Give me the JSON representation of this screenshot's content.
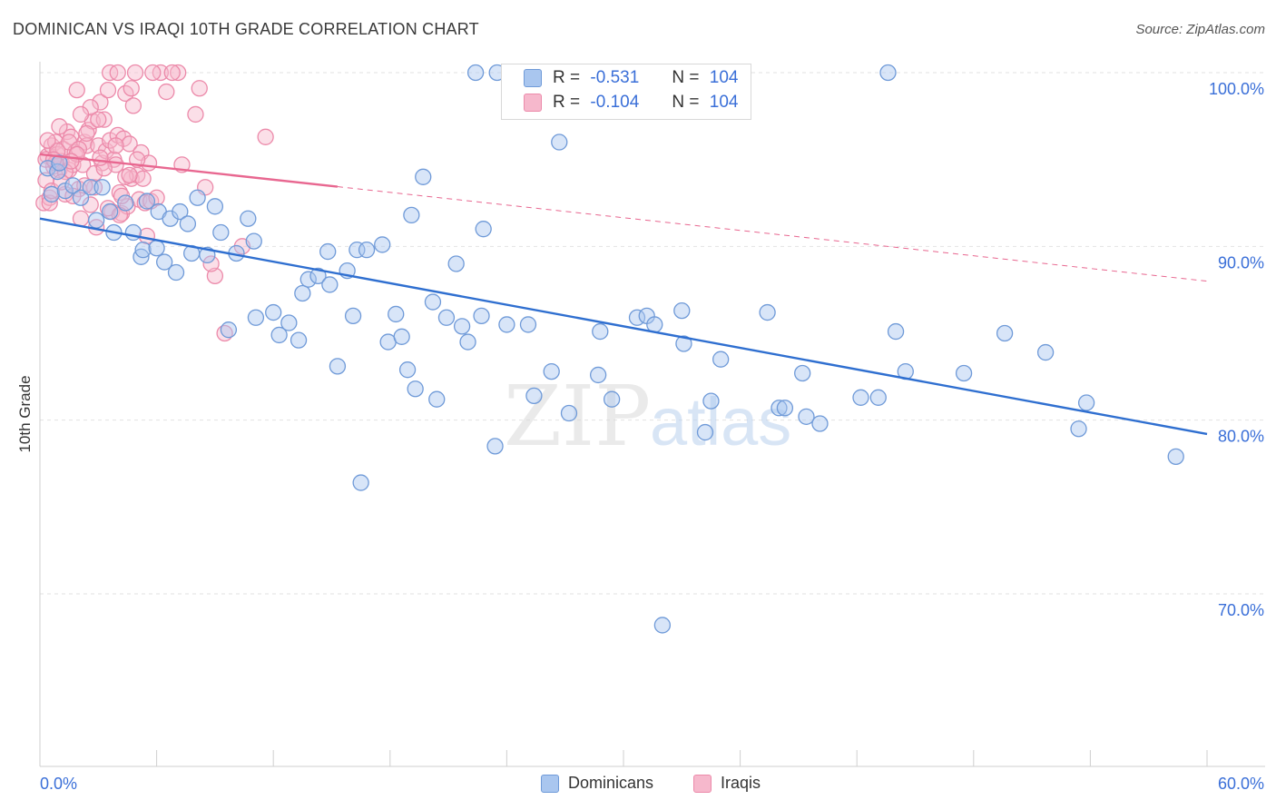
{
  "title": "DOMINICAN VS IRAQI 10TH GRADE CORRELATION CHART",
  "source": "Source: ZipAtlas.com",
  "watermark": {
    "zip": "ZIP",
    "atlas": "atlas"
  },
  "legend": {
    "rows": [
      {
        "r_label": "R =",
        "r_value": "-0.531",
        "n_label": "N =",
        "n_value": "104"
      },
      {
        "r_label": "R =",
        "r_value": "-0.104",
        "n_label": "N =",
        "n_value": "104"
      }
    ]
  },
  "bottom_legend": [
    "Dominicans",
    "Iraqis"
  ],
  "colors": {
    "dominicans_fill": "#a9c6ef",
    "dominicans_stroke": "#6f9ad8",
    "dominicans_line": "#2f6fd0",
    "iraqis_fill": "#f6b8cc",
    "iraqis_stroke": "#ec8aaa",
    "iraqis_line": "#e86790",
    "tick_label": "#3a6fd8",
    "grid": "#e2e2e2"
  },
  "chart_data": {
    "type": "scatter",
    "title": "DOMINICAN VS IRAQI 10TH GRADE CORRELATION CHART",
    "xlabel": "",
    "ylabel": "10th Grade",
    "xlim": [
      0,
      60
    ],
    "ylim": [
      60,
      103
    ],
    "x_ticks": [
      0,
      6,
      12,
      18,
      24,
      30,
      36,
      42,
      48,
      54,
      60
    ],
    "x_tick_labels": [
      {
        "value": 0,
        "label": "0.0%"
      },
      {
        "value": 60,
        "label": "60.0%"
      }
    ],
    "y_ticks": [
      {
        "value": 70,
        "label": "70.0%"
      },
      {
        "value": 80,
        "label": "80.0%"
      },
      {
        "value": 90,
        "label": "90.0%"
      },
      {
        "value": 100,
        "label": "100.0%"
      }
    ],
    "grid": "horizontal dashed",
    "legend_placement": "bottom-center",
    "series": [
      {
        "name": "Dominicans",
        "r": -0.531,
        "n": 104,
        "trend": {
          "x": [
            0,
            60
          ],
          "y": [
            91.6,
            79.2
          ],
          "dashed_from": null
        },
        "points": [
          [
            0.4,
            94.5
          ],
          [
            0.6,
            93.0
          ],
          [
            0.9,
            94.3
          ],
          [
            1.3,
            93.2
          ],
          [
            1.7,
            93.5
          ],
          [
            2.1,
            92.8
          ],
          [
            2.6,
            93.4
          ],
          [
            3.2,
            93.4
          ],
          [
            2.9,
            91.5
          ],
          [
            3.6,
            92.0
          ],
          [
            3.8,
            90.8
          ],
          [
            4.4,
            92.5
          ],
          [
            4.8,
            90.8
          ],
          [
            5.2,
            89.4
          ],
          [
            5.3,
            89.8
          ],
          [
            6.0,
            89.9
          ],
          [
            6.1,
            92.0
          ],
          [
            6.4,
            89.1
          ],
          [
            6.7,
            91.6
          ],
          [
            7.0,
            88.5
          ],
          [
            7.2,
            92.0
          ],
          [
            7.6,
            91.3
          ],
          [
            7.8,
            89.6
          ],
          [
            8.1,
            92.8
          ],
          [
            8.6,
            89.5
          ],
          [
            9.0,
            92.3
          ],
          [
            9.3,
            90.8
          ],
          [
            10.1,
            89.6
          ],
          [
            10.7,
            91.6
          ],
          [
            11.0,
            90.3
          ],
          [
            9.7,
            85.2
          ],
          [
            11.1,
            85.9
          ],
          [
            12.0,
            86.2
          ],
          [
            12.3,
            84.9
          ],
          [
            12.8,
            85.6
          ],
          [
            13.3,
            84.6
          ],
          [
            13.5,
            87.3
          ],
          [
            13.8,
            88.1
          ],
          [
            14.3,
            88.3
          ],
          [
            14.8,
            89.7
          ],
          [
            14.9,
            87.8
          ],
          [
            15.3,
            83.1
          ],
          [
            15.8,
            88.6
          ],
          [
            16.1,
            86.0
          ],
          [
            16.3,
            89.8
          ],
          [
            16.8,
            89.8
          ],
          [
            17.6,
            90.1
          ],
          [
            17.9,
            84.5
          ],
          [
            18.3,
            86.1
          ],
          [
            18.6,
            84.8
          ],
          [
            18.9,
            82.9
          ],
          [
            19.1,
            91.8
          ],
          [
            19.3,
            81.8
          ],
          [
            19.7,
            94.0
          ],
          [
            20.2,
            86.8
          ],
          [
            20.4,
            81.2
          ],
          [
            20.9,
            85.9
          ],
          [
            21.4,
            89.0
          ],
          [
            21.7,
            85.4
          ],
          [
            22.0,
            84.5
          ],
          [
            22.4,
            100.0
          ],
          [
            22.7,
            86.0
          ],
          [
            22.8,
            91.0
          ],
          [
            23.5,
            100.0
          ],
          [
            23.4,
            78.5
          ],
          [
            24.0,
            85.5
          ],
          [
            25.1,
            85.5
          ],
          [
            25.4,
            81.4
          ],
          [
            26.3,
            82.8
          ],
          [
            26.7,
            96.0
          ],
          [
            27.2,
            80.4
          ],
          [
            28.7,
            82.6
          ],
          [
            28.8,
            85.1
          ],
          [
            29.4,
            81.2
          ],
          [
            30.7,
            85.9
          ],
          [
            31.2,
            86.0
          ],
          [
            31.6,
            85.5
          ],
          [
            32.0,
            68.2
          ],
          [
            32.3,
            100.0
          ],
          [
            33.0,
            86.3
          ],
          [
            33.1,
            84.4
          ],
          [
            34.2,
            79.3
          ],
          [
            34.5,
            81.1
          ],
          [
            35.0,
            83.5
          ],
          [
            37.4,
            86.2
          ],
          [
            38.0,
            80.7
          ],
          [
            38.3,
            80.7
          ],
          [
            39.2,
            82.7
          ],
          [
            39.4,
            80.2
          ],
          [
            40.1,
            79.8
          ],
          [
            42.2,
            81.3
          ],
          [
            43.1,
            81.3
          ],
          [
            43.6,
            100.0
          ],
          [
            44.0,
            85.1
          ],
          [
            44.5,
            82.8
          ],
          [
            47.5,
            82.7
          ],
          [
            49.6,
            85.0
          ],
          [
            51.7,
            83.9
          ],
          [
            53.4,
            79.5
          ],
          [
            53.8,
            81.0
          ],
          [
            58.4,
            77.9
          ],
          [
            16.5,
            76.4
          ],
          [
            5.5,
            92.6
          ],
          [
            1.0,
            94.8
          ]
        ]
      },
      {
        "name": "Iraqis",
        "r": -0.104,
        "n": 104,
        "trend": {
          "x": [
            0,
            60
          ],
          "y": [
            95.3,
            88.0
          ],
          "solid_until": 15.3
        },
        "points": [
          [
            0.2,
            92.5
          ],
          [
            0.3,
            93.8
          ],
          [
            0.4,
            95.2
          ],
          [
            0.5,
            92.8
          ],
          [
            0.6,
            95.8
          ],
          [
            0.7,
            94.6
          ],
          [
            0.8,
            96.0
          ],
          [
            0.9,
            95.3
          ],
          [
            1.0,
            94.4
          ],
          [
            1.1,
            94.9
          ],
          [
            1.2,
            95.6
          ],
          [
            1.3,
            93.0
          ],
          [
            1.4,
            96.6
          ],
          [
            1.5,
            94.4
          ],
          [
            1.6,
            96.3
          ],
          [
            1.7,
            94.7
          ],
          [
            1.8,
            95.4
          ],
          [
            1.9,
            99.0
          ],
          [
            2.0,
            93.3
          ],
          [
            2.1,
            91.6
          ],
          [
            2.2,
            94.7
          ],
          [
            2.3,
            96.0
          ],
          [
            2.4,
            95.8
          ],
          [
            2.5,
            96.7
          ],
          [
            2.6,
            92.4
          ],
          [
            2.7,
            97.2
          ],
          [
            2.8,
            93.4
          ],
          [
            2.9,
            91.1
          ],
          [
            3.0,
            95.8
          ],
          [
            3.1,
            98.3
          ],
          [
            3.2,
            94.8
          ],
          [
            3.3,
            97.3
          ],
          [
            3.4,
            95.5
          ],
          [
            3.5,
            99.0
          ],
          [
            3.6,
            96.1
          ],
          [
            3.7,
            92.0
          ],
          [
            3.8,
            95.0
          ],
          [
            3.9,
            94.7
          ],
          [
            4.0,
            96.4
          ],
          [
            4.1,
            93.1
          ],
          [
            4.2,
            91.9
          ],
          [
            4.3,
            96.2
          ],
          [
            4.4,
            98.8
          ],
          [
            4.5,
            92.3
          ],
          [
            4.6,
            95.9
          ],
          [
            4.7,
            93.9
          ],
          [
            4.8,
            98.1
          ],
          [
            4.9,
            100.0
          ],
          [
            5.0,
            94.1
          ],
          [
            5.1,
            92.7
          ],
          [
            5.2,
            95.4
          ],
          [
            5.3,
            93.9
          ],
          [
            5.4,
            92.5
          ],
          [
            5.5,
            90.6
          ],
          [
            5.6,
            94.8
          ],
          [
            5.7,
            92.6
          ],
          [
            6.0,
            92.8
          ],
          [
            6.2,
            100.0
          ],
          [
            6.5,
            98.9
          ],
          [
            7.1,
            100.0
          ],
          [
            7.3,
            94.7
          ],
          [
            8.0,
            97.6
          ],
          [
            8.2,
            99.1
          ],
          [
            8.5,
            93.4
          ],
          [
            9.0,
            88.3
          ],
          [
            8.8,
            89.0
          ],
          [
            9.5,
            85.0
          ],
          [
            10.4,
            90.0
          ],
          [
            11.6,
            96.3
          ],
          [
            5.8,
            100.0
          ],
          [
            6.8,
            100.0
          ],
          [
            3.6,
            100.0
          ],
          [
            4.0,
            100.0
          ],
          [
            4.7,
            99.1
          ],
          [
            2.6,
            98.0
          ],
          [
            3.0,
            97.3
          ],
          [
            1.5,
            96.0
          ],
          [
            2.0,
            95.6
          ],
          [
            0.9,
            95.5
          ],
          [
            1.3,
            94.3
          ],
          [
            0.5,
            92.5
          ],
          [
            0.6,
            93.2
          ],
          [
            1.7,
            92.9
          ],
          [
            2.3,
            93.5
          ],
          [
            3.5,
            92.2
          ],
          [
            4.1,
            91.8
          ],
          [
            4.4,
            94.0
          ],
          [
            5.0,
            95.0
          ],
          [
            0.3,
            95.0
          ],
          [
            0.8,
            94.8
          ],
          [
            1.1,
            93.7
          ],
          [
            1.9,
            95.3
          ],
          [
            2.8,
            94.2
          ],
          [
            3.3,
            94.5
          ],
          [
            4.2,
            92.9
          ],
          [
            0.4,
            96.1
          ],
          [
            1.6,
            94.9
          ],
          [
            2.4,
            96.5
          ],
          [
            3.1,
            95.1
          ],
          [
            4.6,
            94.1
          ],
          [
            0.7,
            95.0
          ],
          [
            1.0,
            96.9
          ],
          [
            2.1,
            97.6
          ],
          [
            3.9,
            95.8
          ]
        ]
      }
    ]
  }
}
